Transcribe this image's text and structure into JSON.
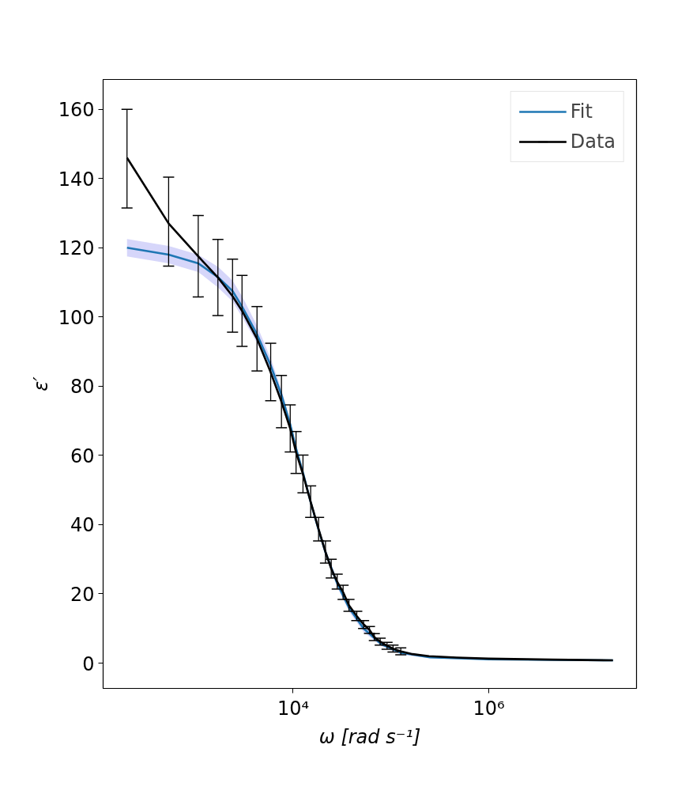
{
  "chart_data": {
    "type": "line",
    "xlabel": "ω [rad s⁻¹]",
    "ylabel": "ε′",
    "log": "x",
    "xlim": [
      114,
      32400000
    ],
    "xticks": [
      {
        "value": 10000,
        "label": "10⁴"
      },
      {
        "value": 1000000,
        "label": "10⁶"
      }
    ],
    "ylim": [
      -7.3,
      168.6
    ],
    "yticks": [
      0,
      20,
      40,
      60,
      80,
      100,
      120,
      140,
      160
    ],
    "grid": false,
    "legend": "top right",
    "series": [
      {
        "name": "Fit",
        "color": "#1f77b4",
        "x": [
          200,
          533,
          1070,
          1700,
          2400,
          3000,
          4270,
          5890,
          7590,
          9330,
          10700,
          12600,
          15100,
          18200,
          21400,
          28200,
          37200,
          52500,
          79400,
          126000,
          251000,
          1000000,
          18600000
        ],
        "values": [
          120,
          118,
          115.5,
          111.5,
          107.5,
          103,
          95,
          86,
          77.5,
          69,
          62,
          55,
          46.5,
          38.5,
          32,
          23,
          16,
          10,
          5.5,
          3,
          1.7,
          1.1,
          0.8
        ],
        "lower": [
          117.5,
          115.5,
          113,
          108.5,
          104.5,
          100,
          92.5,
          84,
          76,
          68,
          61,
          54,
          45.5,
          37.5,
          31,
          22,
          15,
          9,
          5,
          2.5,
          1.4,
          0.9,
          0.7
        ],
        "upper": [
          122.5,
          120.5,
          118,
          114.5,
          110.5,
          106,
          97.5,
          88,
          79,
          70,
          63,
          56,
          47.5,
          39.5,
          33,
          24,
          17,
          11,
          6,
          3.5,
          2,
          1.3,
          0.9
        ]
      },
      {
        "name": "Data",
        "color": "#000000",
        "x": [
          200,
          533,
          1070,
          1700,
          2400,
          3000,
          4270,
          5890,
          7590,
          9330,
          10700,
          12600,
          15100,
          18200,
          21400,
          24500,
          28200,
          32400,
          37200,
          44700,
          52500,
          60300,
          67600,
          77600,
          91200,
          105000,
          126000,
          166000,
          245000,
          468000,
          1000000,
          4470000,
          18600000
        ],
        "values": [
          146,
          127,
          117.5,
          111.4,
          106,
          101.8,
          93.7,
          84,
          75.5,
          67.8,
          60.9,
          54.6,
          46.6,
          38.7,
          32.1,
          27.3,
          23.5,
          20.5,
          16.7,
          13.6,
          11.2,
          9.6,
          7.5,
          6.2,
          5,
          4.2,
          3.4,
          2.6,
          2,
          1.6,
          1.3,
          1,
          0.8
        ],
        "errors": [
          [
            131.5,
            160
          ],
          [
            114.7,
            140.4
          ],
          [
            105.8,
            129.3
          ],
          [
            100.4,
            122.4
          ],
          [
            95.6,
            116.7
          ],
          [
            91.5,
            112
          ],
          [
            84.4,
            103
          ],
          [
            75.8,
            92.4
          ],
          [
            68,
            83.1
          ],
          [
            61,
            74.6
          ],
          [
            54.8,
            66.9
          ],
          [
            49.2,
            60.1
          ],
          [
            42.1,
            51.2
          ],
          [
            35.3,
            42.1
          ],
          [
            28.9,
            35.3
          ],
          [
            24.6,
            30
          ],
          [
            21.4,
            25.7
          ],
          [
            18.4,
            22.5
          ],
          [
            15,
            18.4
          ],
          [
            12.3,
            15
          ],
          [
            10,
            12.3
          ],
          1,
          1,
          1,
          1,
          1,
          1,
          null,
          null,
          null,
          null,
          null,
          null
        ]
      }
    ]
  }
}
